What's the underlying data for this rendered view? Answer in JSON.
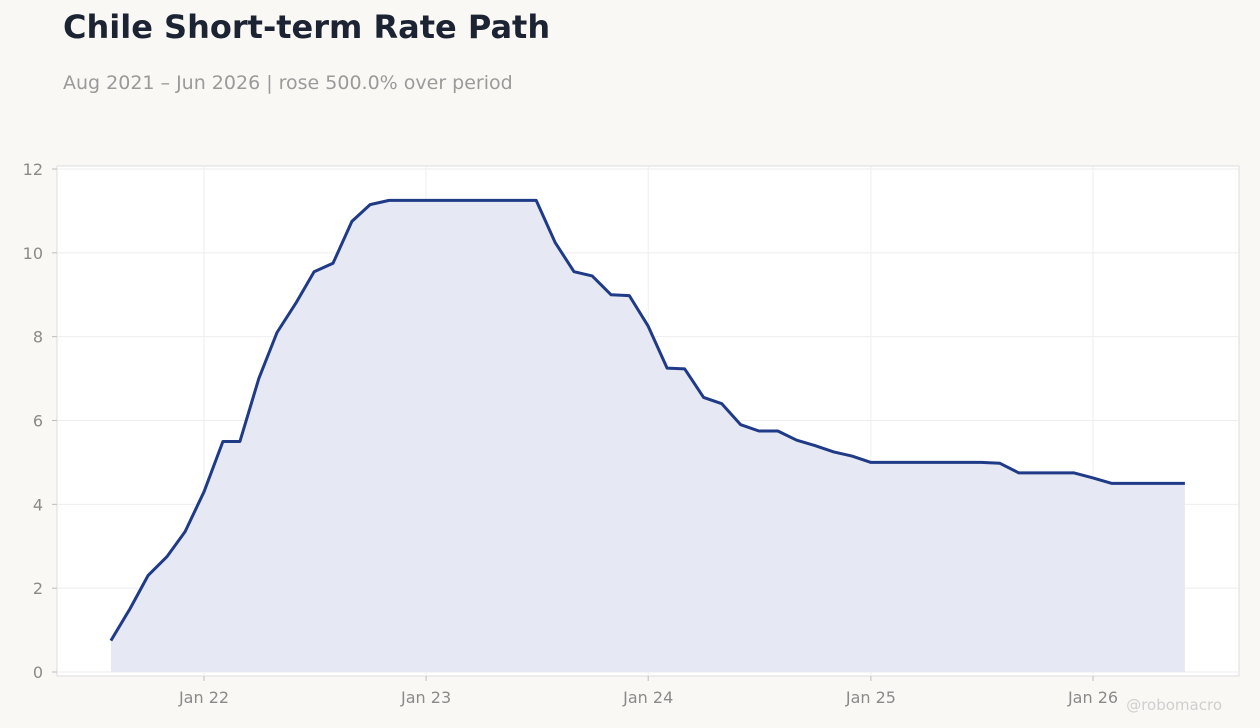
{
  "chart_data": {
    "type": "area",
    "title": "Chile Short-term Rate Path",
    "subtitle": "Aug 2021 – Jun 2026 | rose 500.0% over period",
    "xlabel": "",
    "ylabel": "",
    "ylim": [
      0,
      12
    ],
    "y_ticks": [
      0,
      2,
      4,
      6,
      8,
      10,
      12
    ],
    "x_ticks": [
      {
        "date": "2022-01-01",
        "label": "Jan 22"
      },
      {
        "date": "2023-01-01",
        "label": "Jan 23"
      },
      {
        "date": "2024-01-01",
        "label": "Jan 24"
      },
      {
        "date": "2025-01-01",
        "label": "Jan 25"
      },
      {
        "date": "2026-01-01",
        "label": "Jan 26"
      }
    ],
    "grid": true,
    "line_color": "#1f3a87",
    "fill_color": "#e6e8f3",
    "watermark": "@robomacro",
    "series": [
      {
        "x": [
          "2021-08",
          "2021-09",
          "2021-10",
          "2021-11",
          "2021-12",
          "2022-01",
          "2022-02",
          "2022-03",
          "2022-04",
          "2022-05",
          "2022-06",
          "2022-07",
          "2022-08",
          "2022-09",
          "2022-10",
          "2022-11",
          "2022-12",
          "2023-01",
          "2023-02",
          "2023-03",
          "2023-04",
          "2023-05",
          "2023-06",
          "2023-07",
          "2023-08",
          "2023-09",
          "2023-10",
          "2023-11",
          "2023-12",
          "2024-01",
          "2024-02",
          "2024-03",
          "2024-04",
          "2024-05",
          "2024-06",
          "2024-07",
          "2024-08",
          "2024-09",
          "2024-10",
          "2024-11",
          "2024-12",
          "2025-01",
          "2025-02",
          "2025-03",
          "2025-04",
          "2025-05",
          "2025-06",
          "2025-07",
          "2025-08",
          "2025-09",
          "2025-10",
          "2025-11",
          "2025-12",
          "2026-01",
          "2026-02",
          "2026-03",
          "2026-04",
          "2026-05",
          "2026-06"
        ],
        "y": [
          0.75,
          1.5,
          2.3,
          2.75,
          3.35,
          4.3,
          5.5,
          5.5,
          7.0,
          8.1,
          8.8,
          9.55,
          9.75,
          10.75,
          11.15,
          11.25,
          11.25,
          11.25,
          11.25,
          11.25,
          11.25,
          11.25,
          11.25,
          11.25,
          10.25,
          9.55,
          9.45,
          9.0,
          8.98,
          8.25,
          7.25,
          7.23,
          6.55,
          6.4,
          5.9,
          5.75,
          5.75,
          5.53,
          5.4,
          5.25,
          5.15,
          5.0,
          5.0,
          5.0,
          5.0,
          5.0,
          5.0,
          5.0,
          4.98,
          4.75,
          4.75,
          4.75,
          4.75,
          4.63,
          4.5,
          4.5,
          4.5,
          4.5,
          4.5
        ]
      }
    ]
  }
}
